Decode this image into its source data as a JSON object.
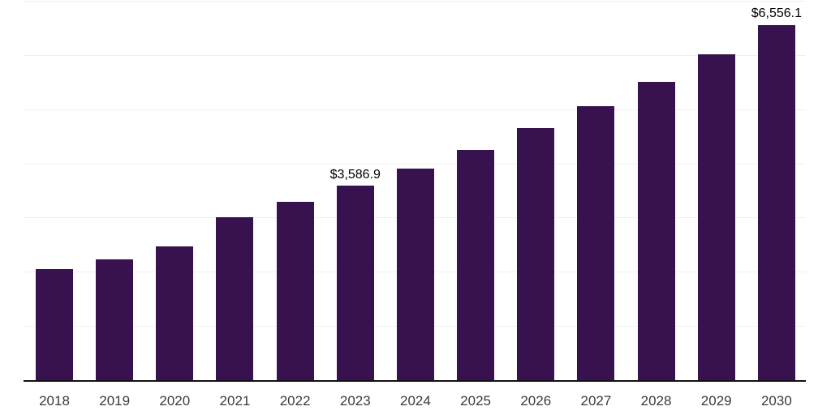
{
  "chart_data": {
    "type": "bar",
    "title": "",
    "xlabel": "",
    "ylabel": "",
    "categories": [
      "2018",
      "2019",
      "2020",
      "2021",
      "2022",
      "2023",
      "2024",
      "2025",
      "2026",
      "2027",
      "2028",
      "2029",
      "2030"
    ],
    "values": [
      2055,
      2227,
      2474,
      3012,
      3296,
      3586.9,
      3909,
      4253,
      4649,
      5061,
      5509,
      6010,
      6556.1
    ],
    "data_labels": [
      null,
      null,
      null,
      null,
      null,
      "$3,586.9",
      null,
      null,
      null,
      null,
      null,
      null,
      "$6,556.1"
    ],
    "ylim": [
      0,
      7000
    ],
    "gridline_interval": 1000,
    "grid": "horizontal",
    "legend": "none",
    "colors": {
      "bar": "#38124E",
      "axis_line": "#111111",
      "gridline": "#F0F0F0",
      "tick_label": "#3A3A3A",
      "data_label": "#000000",
      "background": "#FFFFFF"
    }
  }
}
